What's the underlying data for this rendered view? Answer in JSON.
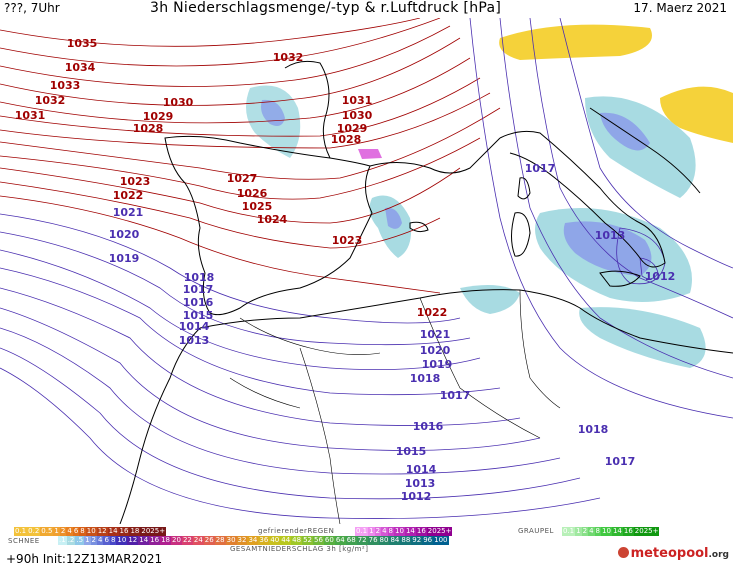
{
  "header": {
    "left": "???, 7Uhr",
    "title": "3h Niederschlagsmenge/-typ & r.Luftdruck [hPa]",
    "date": "17. Maerz 2021"
  },
  "colors": {
    "high_pressure_isobar": "#a00000",
    "low_pressure_isobar": "#4a2fb0",
    "coastline": "#000000",
    "rain_light": "#a8dbe2",
    "rain_medium": "#8fa6e8",
    "snow_yellow": "#f5d23a",
    "freezing_pink": "#e070e0"
  },
  "isobar_labels": [
    {
      "text": "1035",
      "group": "high"
    },
    {
      "text": "1034",
      "group": "high"
    },
    {
      "text": "1033",
      "group": "high"
    },
    {
      "text": "1032",
      "group": "high"
    },
    {
      "text": "1031",
      "group": "high"
    },
    {
      "text": "1032",
      "group": "high"
    },
    {
      "text": "1030",
      "group": "high"
    },
    {
      "text": "1029",
      "group": "high"
    },
    {
      "text": "1028",
      "group": "high"
    },
    {
      "text": "1031",
      "group": "high"
    },
    {
      "text": "1030",
      "group": "high"
    },
    {
      "text": "1029",
      "group": "high"
    },
    {
      "text": "1028",
      "group": "high"
    },
    {
      "text": "1027",
      "group": "high"
    },
    {
      "text": "1026",
      "group": "high"
    },
    {
      "text": "1025",
      "group": "high"
    },
    {
      "text": "1024",
      "group": "high"
    },
    {
      "text": "1023",
      "group": "high"
    },
    {
      "text": "1022",
      "group": "high"
    },
    {
      "text": "1023",
      "group": "high"
    },
    {
      "text": "1022",
      "group": "high"
    },
    {
      "text": "1021",
      "group": "low"
    },
    {
      "text": "1020",
      "group": "low"
    },
    {
      "text": "1019",
      "group": "low"
    },
    {
      "text": "1018",
      "group": "low"
    },
    {
      "text": "1017",
      "group": "low"
    },
    {
      "text": "1016",
      "group": "low"
    },
    {
      "text": "1015",
      "group": "low"
    },
    {
      "text": "1014",
      "group": "low"
    },
    {
      "text": "1013",
      "group": "low"
    },
    {
      "text": "1017",
      "group": "low"
    },
    {
      "text": "1013",
      "group": "low"
    },
    {
      "text": "1012",
      "group": "low"
    },
    {
      "text": "1021",
      "group": "low"
    },
    {
      "text": "1020",
      "group": "low"
    },
    {
      "text": "1019",
      "group": "low"
    },
    {
      "text": "1018",
      "group": "low"
    },
    {
      "text": "1017",
      "group": "low"
    },
    {
      "text": "1016",
      "group": "low"
    },
    {
      "text": "1015",
      "group": "low"
    },
    {
      "text": "1014",
      "group": "low"
    },
    {
      "text": "1013",
      "group": "low"
    },
    {
      "text": "1012",
      "group": "low"
    },
    {
      "text": "1018",
      "group": "low"
    },
    {
      "text": "1017",
      "group": "low"
    }
  ],
  "legend": {
    "snow_scale": [
      "0.1",
      "0.2",
      "0.5",
      "1",
      "2",
      "4",
      "6",
      "8",
      "10",
      "12",
      "14",
      "16",
      "18",
      "2025+"
    ],
    "freezing_rain_title": "gefrierenderREGEN",
    "freezing_rain_scale": [
      "0.1",
      "1",
      "2",
      "4",
      "8",
      "10",
      "14",
      "16",
      "2025+"
    ],
    "graupel_title": "GRAUPEL",
    "graupel_scale": [
      "0.1",
      "1",
      "2",
      "4",
      "8",
      "10",
      "14",
      "16",
      "2025+"
    ],
    "snow_title": "SCHNEE",
    "rain_scale": [
      ".1",
      ".2",
      ".5",
      "1",
      "2",
      "4",
      "6",
      "8",
      "10",
      "12",
      "14",
      "16",
      "18",
      "20",
      "22",
      "24",
      "26",
      "28",
      "30",
      "32",
      "34",
      "36",
      "40",
      "44",
      "48",
      "52",
      "56",
      "60",
      "64",
      "68",
      "72",
      "76",
      "80",
      "84",
      "88",
      "92",
      "96",
      "100"
    ],
    "total_title": "GESAMTNIEDERSCHLAG 3h [kg/m²]",
    "run_info": "+90h Init:12Z13MAR2021",
    "logo_text": "meteopool",
    "logo_suffix": ".org"
  }
}
